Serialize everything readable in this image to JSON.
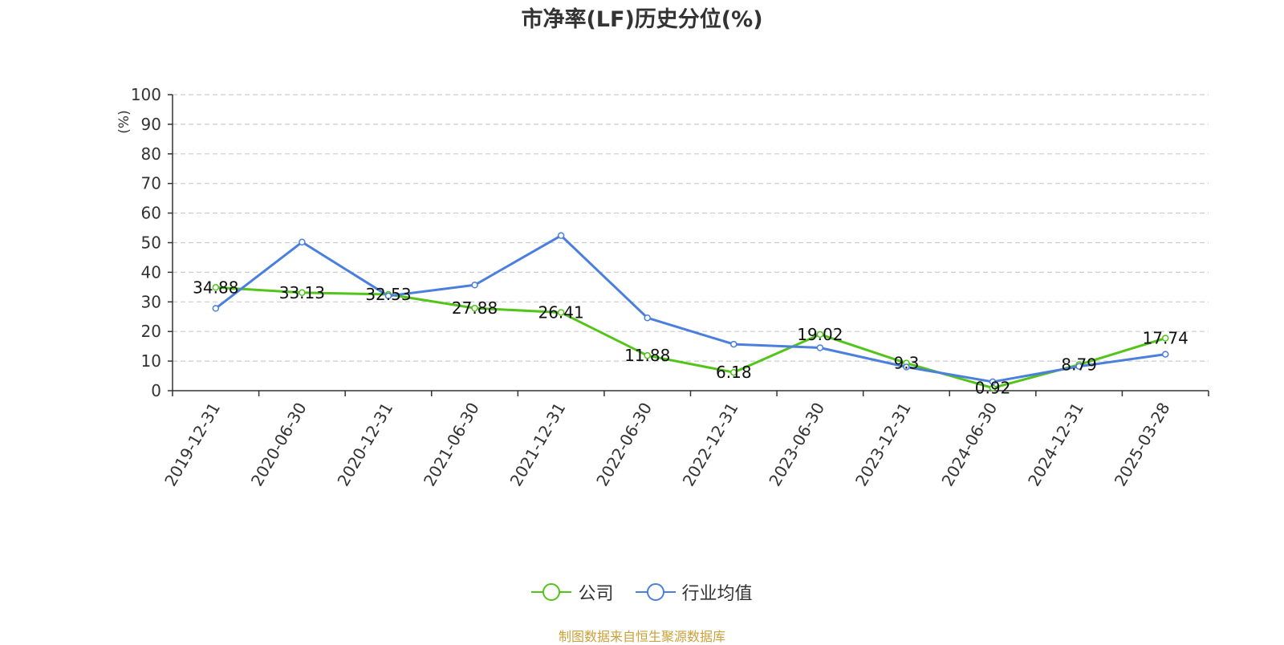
{
  "title": "市净率(LF)历史分位(%)",
  "source_note": "制图数据来自恒生聚源数据库",
  "colors": {
    "company": "#52c41a",
    "industry": "#4a7fde",
    "unit_label": "#ff0000",
    "source_note": "#c8a23a",
    "grid": "#cccccc",
    "axis": "#333333"
  },
  "chart_data": {
    "type": "line",
    "title": "市净率(LF)历史分位(%)",
    "ylabel": "(%)",
    "xlabel": "",
    "ylim": [
      0,
      100
    ],
    "yticks": [
      0,
      10,
      20,
      30,
      40,
      50,
      60,
      70,
      80,
      90,
      100
    ],
    "grid": true,
    "legend_position": "bottom-center",
    "categories": [
      "2019-12-31",
      "2020-06-30",
      "2020-12-31",
      "2021-06-30",
      "2021-12-31",
      "2022-06-30",
      "2022-12-31",
      "2023-06-30",
      "2023-12-31",
      "2024-06-30",
      "2024-12-31",
      "2025-03-28"
    ],
    "series": [
      {
        "name": "公司",
        "color": "#52c41a",
        "values": [
          34.88,
          33.13,
          32.53,
          27.88,
          26.41,
          11.88,
          6.18,
          19.02,
          9.3,
          0.92,
          8.79,
          17.74
        ],
        "labels": [
          "34.88",
          "33.13",
          "32.53",
          "27.88",
          "26.41",
          "11.88",
          "6.18",
          "19.02",
          "9.3",
          "0.92",
          "8.79",
          "17.74"
        ]
      },
      {
        "name": "行业均值",
        "color": "#4a7fde",
        "values": [
          27.8,
          50.2,
          32.0,
          35.7,
          52.4,
          24.6,
          15.7,
          14.5,
          8.0,
          3.0,
          8.2,
          12.3
        ]
      }
    ]
  }
}
